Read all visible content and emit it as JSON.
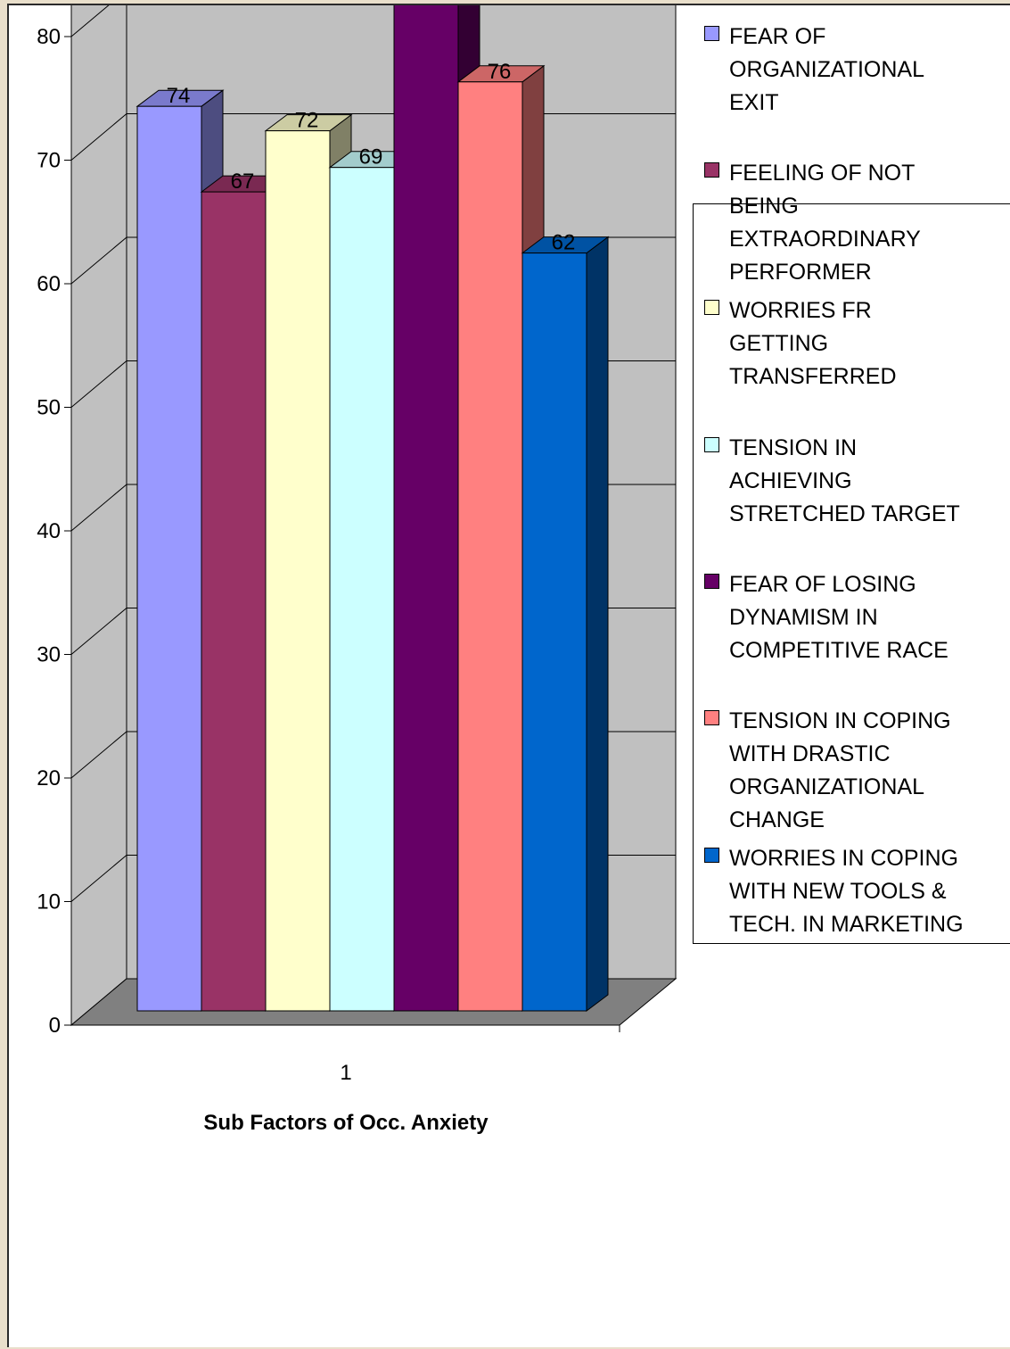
{
  "chart_data": {
    "type": "bar",
    "three_d": true,
    "categories": [
      "1"
    ],
    "xlabel": "Sub Factors of Occ. Anxiety",
    "ylabel": "",
    "ylim": [
      0,
      90
    ],
    "yticks": [
      0,
      10,
      20,
      30,
      40,
      50,
      60,
      70,
      80,
      90
    ],
    "grid": true,
    "legend_position": "right",
    "series": [
      {
        "name": "FEAR OF ORGANIZATIONAL EXIT",
        "values": [
          74
        ],
        "color": "#9999ff"
      },
      {
        "name": "FEELING OF NOT BEING EXTRAORDINARY PERFORMER",
        "values": [
          67
        ],
        "color": "#993366"
      },
      {
        "name": "WORRIES FR GETTING TRANSFERRED",
        "values": [
          72
        ],
        "color": "#ffffcc"
      },
      {
        "name": "TENSION IN ACHIEVING STRETCHED TARGET",
        "values": [
          69
        ],
        "color": "#ccffff"
      },
      {
        "name": "FEAR OF LOSING DYNAMISM IN COMPETITIVE RACE",
        "values": [
          84
        ],
        "color": "#660066"
      },
      {
        "name": "TENSION IN COPING WITH DRASTIC ORGANIZATIONAL CHANGE",
        "values": [
          76
        ],
        "color": "#ff8080"
      },
      {
        "name": "WORRIES IN COPING WITH NEW TOOLS & TECH. IN MARKETING",
        "values": [
          62
        ],
        "color": "#0066cc"
      }
    ]
  },
  "legend": {
    "items": [
      {
        "lines": [
          "FEAR OF",
          "ORGANIZATIONAL",
          "EXIT"
        ]
      },
      {
        "lines": [
          "FEELING OF NOT",
          "BEING",
          "EXTRAORDINARY",
          "PERFORMER"
        ]
      },
      {
        "lines": [
          "WORRIES FR",
          "GETTING",
          "TRANSFERRED"
        ]
      },
      {
        "lines": [
          "TENSION IN",
          "ACHIEVING",
          "STRETCHED TARGET"
        ]
      },
      {
        "lines": [
          "FEAR OF LOSING",
          "DYNAMISM IN",
          "COMPETITIVE RACE"
        ]
      },
      {
        "lines": [
          "TENSION IN COPING",
          "WITH DRASTIC",
          "ORGANIZATIONAL",
          "CHANGE"
        ]
      },
      {
        "lines": [
          "WORRIES IN COPING",
          "WITH NEW TOOLS &",
          "TECH. IN MARKETING"
        ]
      }
    ]
  }
}
